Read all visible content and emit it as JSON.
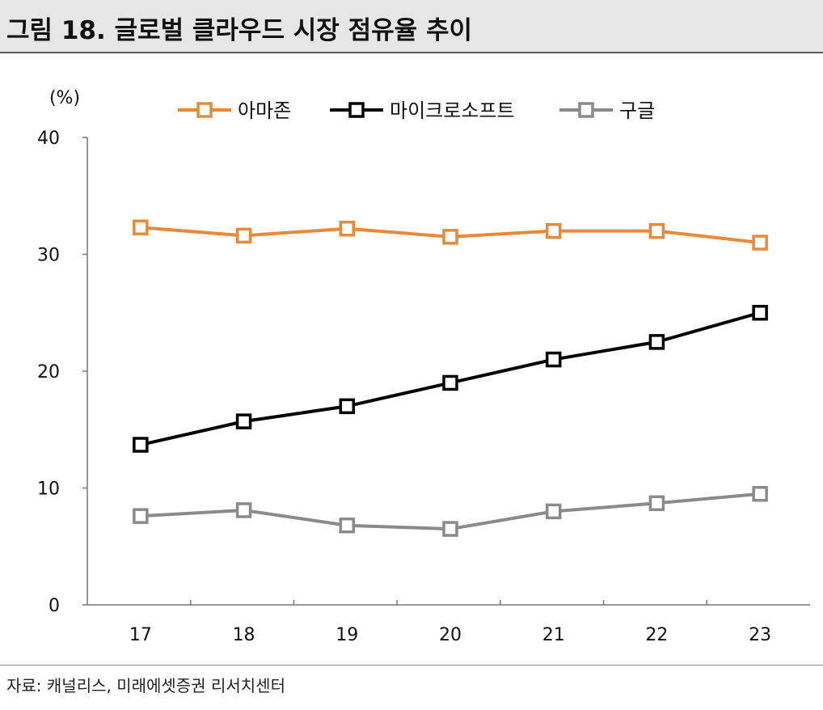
{
  "header": {
    "title": "그림 18. 글로벌 클라우드 시장 점유율 추이"
  },
  "footer": {
    "source": "자료: 캐널리스, 미래에셋증권 리서치센터"
  },
  "chart_data": {
    "type": "line",
    "title": "그림 18. 글로벌 클라우드 시장 점유율 추이",
    "ylabel": "(%)",
    "xlabel": "",
    "categories": [
      "17",
      "18",
      "19",
      "20",
      "21",
      "22",
      "23"
    ],
    "yticks": [
      "0",
      "10",
      "20",
      "30",
      "40"
    ],
    "ylim": [
      0,
      40
    ],
    "grid": false,
    "legend_position": "top",
    "series": [
      {
        "name": "아마존",
        "color": "#e8893a",
        "values": [
          32.3,
          31.6,
          32.2,
          31.5,
          32.0,
          32.0,
          31.0
        ]
      },
      {
        "name": "마이크로소프트",
        "color": "#000000",
        "values": [
          13.7,
          15.7,
          17.0,
          19.0,
          21.0,
          22.5,
          25.0
        ]
      },
      {
        "name": "구글",
        "color": "#8a8a8a",
        "values": [
          7.6,
          8.1,
          6.8,
          6.5,
          8.0,
          8.7,
          9.5
        ]
      }
    ]
  }
}
